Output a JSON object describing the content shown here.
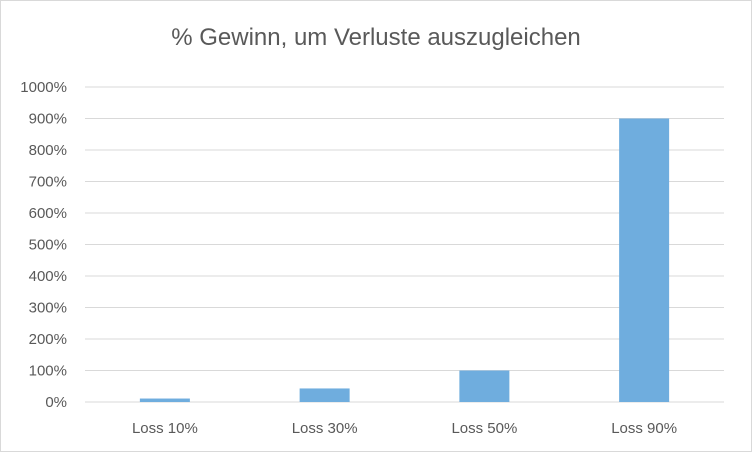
{
  "chart_data": {
    "type": "bar",
    "title": "% Gewinn, um Verluste auszugleichen",
    "categories": [
      "Loss 10%",
      "Loss 30%",
      "Loss 50%",
      "Loss 90%"
    ],
    "series": [
      {
        "values": [
          11,
          43,
          100,
          900
        ]
      }
    ],
    "ylim": [
      0,
      1000
    ],
    "yticks": [
      "0%",
      "100%",
      "200%",
      "300%",
      "400%",
      "500%",
      "600%",
      "700%",
      "800%",
      "900%",
      "1000%"
    ],
    "grid": true,
    "legend": "none",
    "colors": {
      "bar": "#6FADDE",
      "grid": "#d9d9d9",
      "text": "#595959"
    }
  }
}
